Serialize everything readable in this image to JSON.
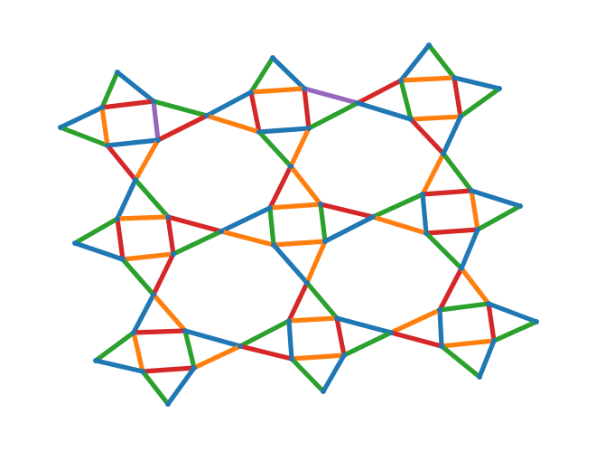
{
  "palette": {
    "blue": "#1f77b4",
    "orange": "#ff7f0e",
    "green": "#2ca02c",
    "red": "#d62728",
    "purple": "#9467bd",
    "background": "#ffffff"
  },
  "graph": {
    "type": "edge-colored graph drawing (square-triangle tiling)",
    "node_color": "#1f77b4",
    "edge_colors_present": [
      "blue",
      "orange",
      "green",
      "red",
      "purple"
    ]
  }
}
